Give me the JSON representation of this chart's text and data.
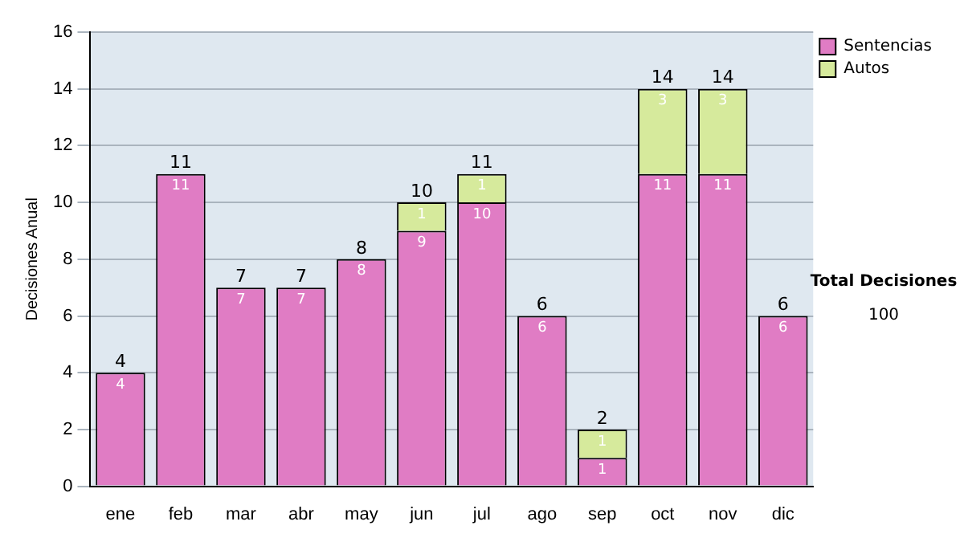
{
  "chart_data": {
    "type": "bar",
    "stacked": true,
    "ylabel": "Decisiones Anual",
    "categories": [
      "ene",
      "feb",
      "mar",
      "abr",
      "may",
      "jun",
      "jul",
      "ago",
      "sep",
      "oct",
      "nov",
      "dic"
    ],
    "series": [
      {
        "name": "Sentencias",
        "color": "#e07cc4",
        "values": [
          4,
          11,
          7,
          7,
          8,
          9,
          10,
          6,
          1,
          11,
          11,
          6
        ],
        "value_labels": [
          "4",
          "11",
          "7",
          "7",
          "8",
          "9",
          "10",
          "6",
          "1",
          "11",
          "11",
          "6"
        ]
      },
      {
        "name": "Autos",
        "color": "#d6ea9c",
        "values": [
          0,
          0,
          0,
          0,
          0,
          1,
          1,
          0,
          1,
          3,
          3,
          0
        ],
        "value_labels": [
          null,
          null,
          null,
          null,
          null,
          "1",
          "1",
          null,
          "1",
          "3",
          "3",
          null
        ]
      }
    ],
    "totals": [
      "4",
      "11",
      "7",
      "7",
      "8",
      "10",
      "11",
      "6",
      "2",
      "14",
      "14",
      "6"
    ],
    "ylim": [
      0,
      16
    ],
    "yticks": [
      0,
      2,
      4,
      6,
      8,
      10,
      12,
      14,
      16
    ],
    "grid": "y",
    "legend": "right",
    "annotations": [
      "Total Decisiones",
      "100"
    ]
  }
}
